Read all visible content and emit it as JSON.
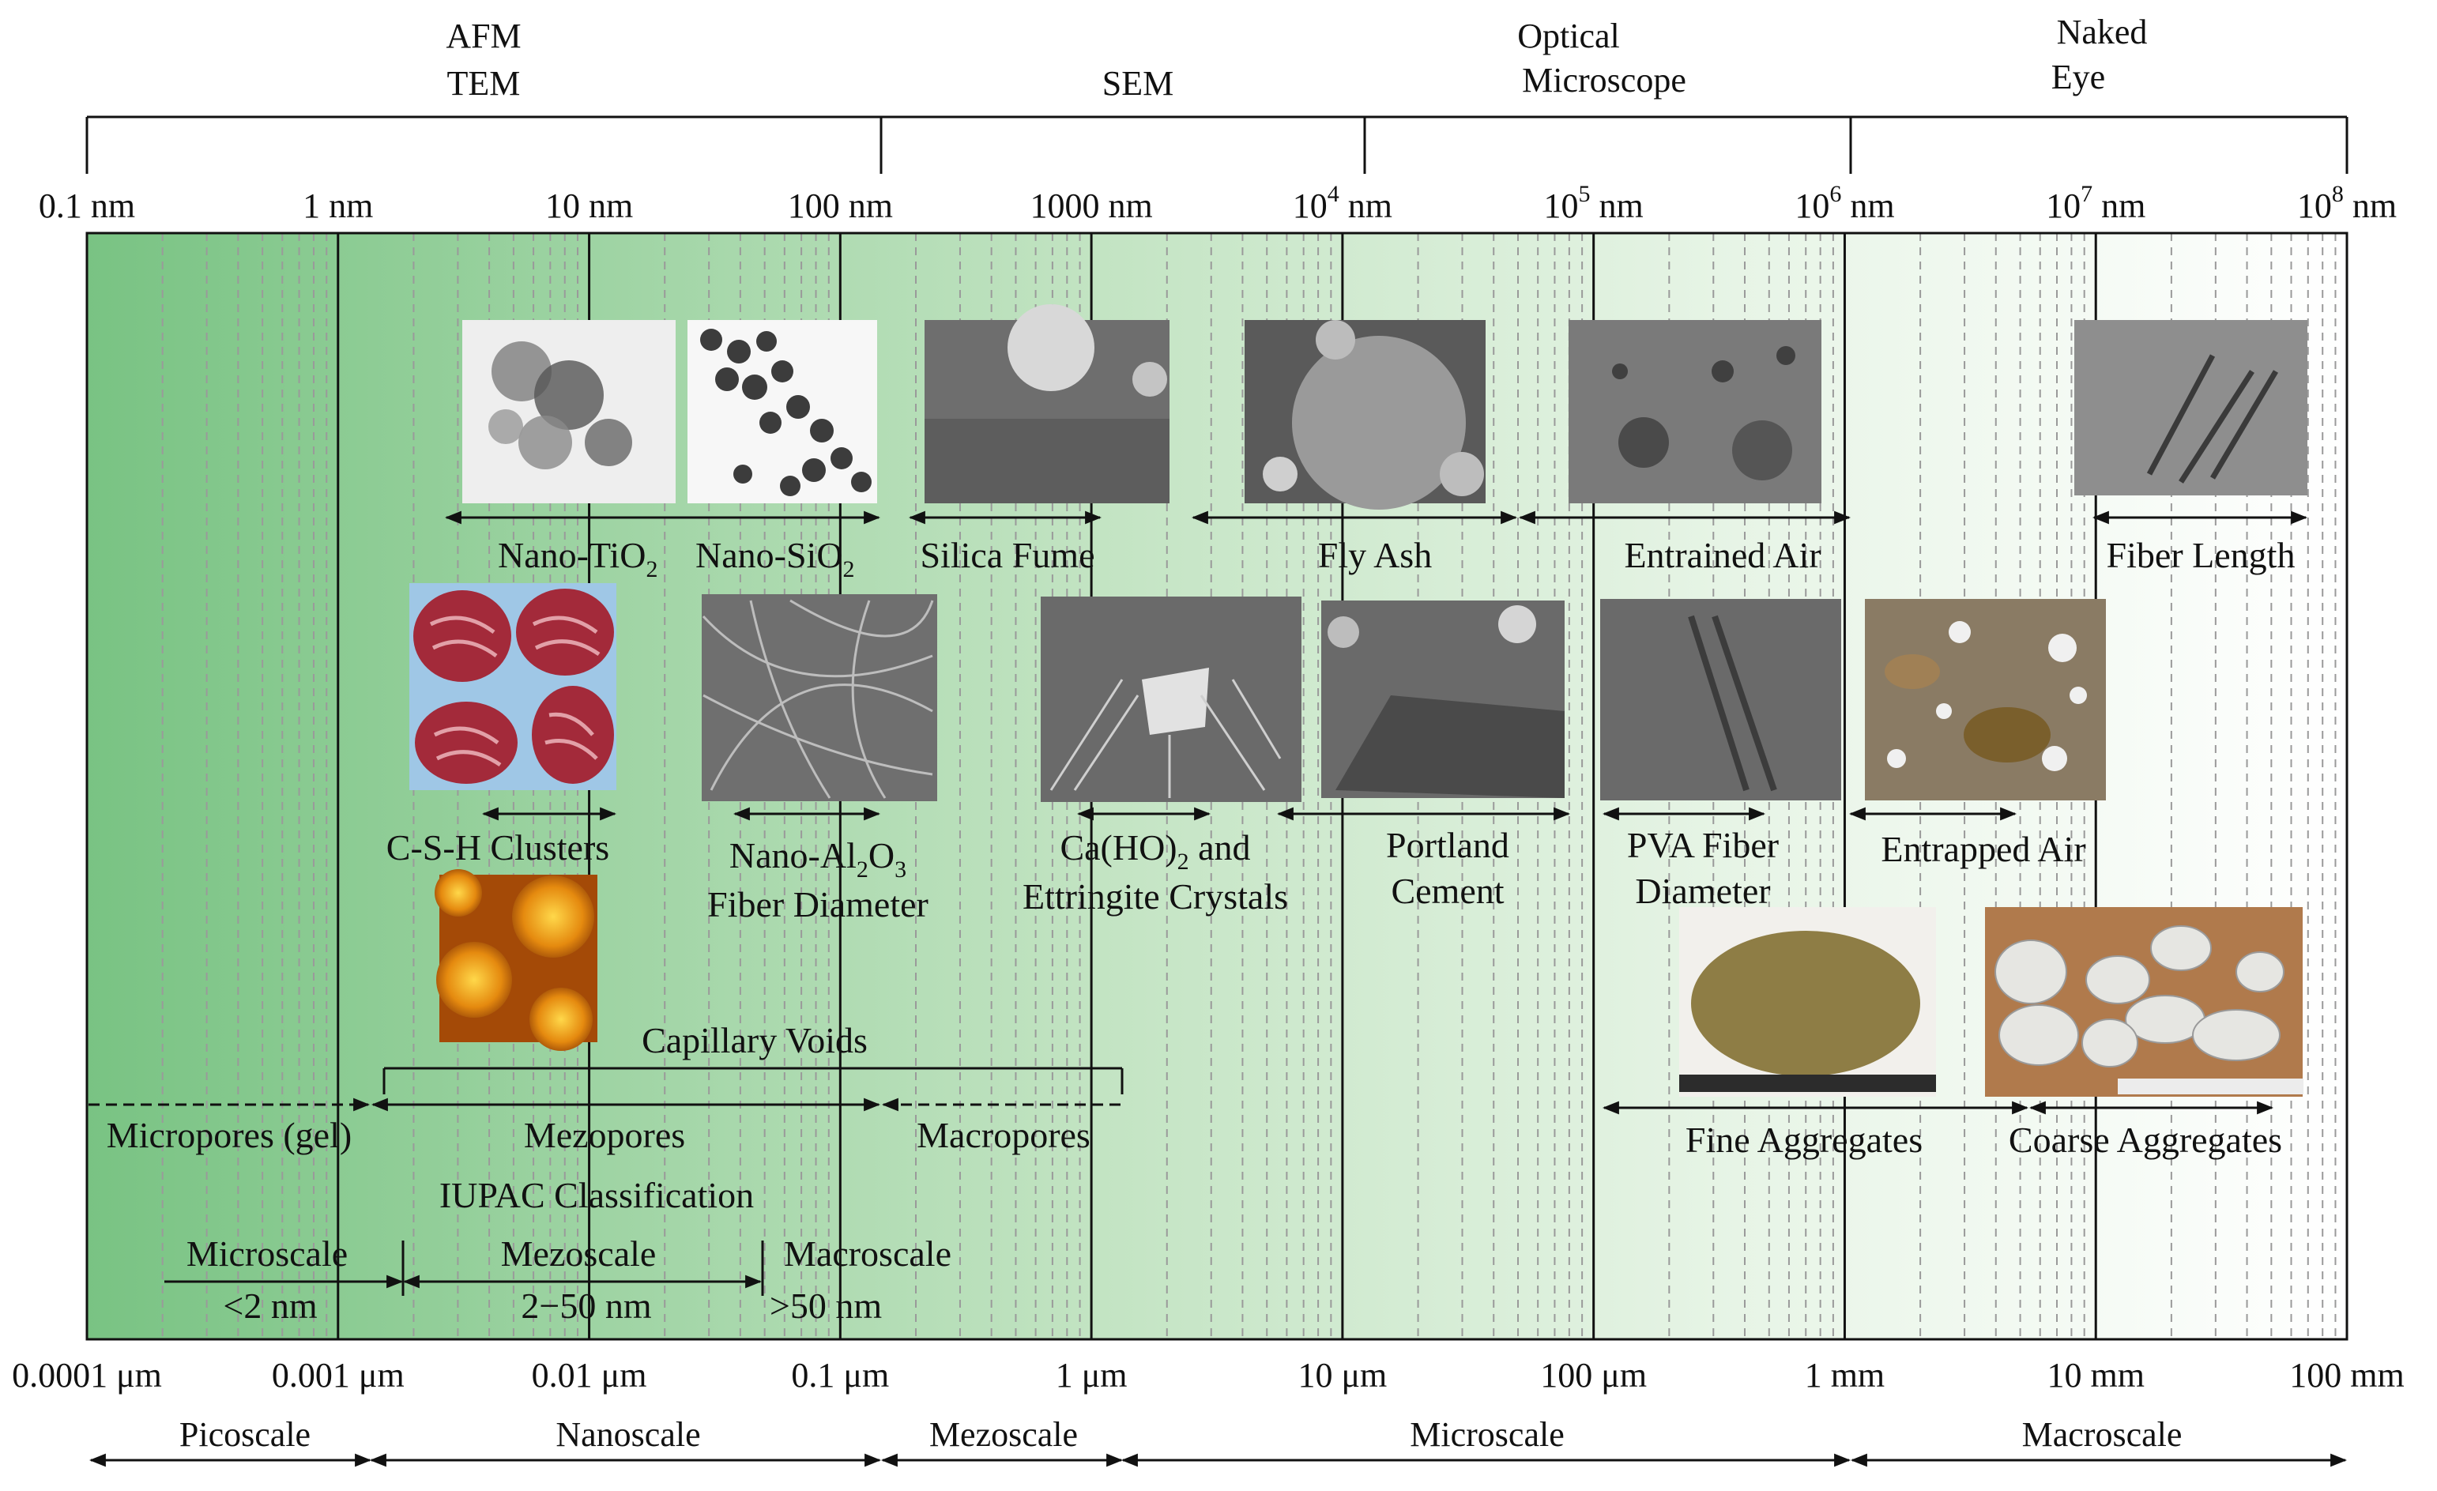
{
  "instruments": {
    "afm_tem": [
      "AFM",
      "TEM"
    ],
    "sem": "SEM",
    "optical": [
      "Optical",
      "Microscope"
    ],
    "naked_eye": [
      "Naked",
      "Eye"
    ]
  },
  "top_axis": {
    "ticks": [
      {
        "base": "0.1 nm",
        "sup": "",
        "unit": ""
      },
      {
        "base": "1 nm",
        "sup": "",
        "unit": ""
      },
      {
        "base": "10 nm",
        "sup": "",
        "unit": ""
      },
      {
        "base": "100 nm",
        "sup": "",
        "unit": ""
      },
      {
        "base": "1000 nm",
        "sup": "",
        "unit": ""
      },
      {
        "base": "10",
        "sup": "4",
        "unit": " nm"
      },
      {
        "base": "10",
        "sup": "5",
        "unit": " nm"
      },
      {
        "base": "10",
        "sup": "6",
        "unit": " nm"
      },
      {
        "base": "10",
        "sup": "7",
        "unit": " nm"
      },
      {
        "base": "10",
        "sup": "8",
        "unit": " nm"
      }
    ]
  },
  "bottom_axis": {
    "ticks": [
      "0.0001 μm",
      "0.001 μm",
      "0.01 μm",
      "0.1 μm",
      "1 μm",
      "10 μm",
      "100 μm",
      "1 mm",
      "10 mm",
      "100 mm"
    ]
  },
  "scales": [
    "Picoscale",
    "Nanoscale",
    "Mezoscale",
    "Microscale",
    "Macroscale"
  ],
  "materials": {
    "nano_tio2": {
      "base": "Nano-TiO",
      "sub": "2"
    },
    "nano_sio2": {
      "base": "Nano-SiO",
      "sub": "2"
    },
    "silica_fume": "Silica Fume",
    "fly_ash": "Fly Ash",
    "entrained_air": "Entrained Air",
    "fiber_length": "Fiber Length",
    "csh_clusters": "C-S-H Clusters",
    "nano_al2o3": {
      "part1": "Nano-Al",
      "sub1": "2",
      "part2": "O",
      "sub2": "3",
      "line2": "Fiber Diameter"
    },
    "ca_oh": {
      "part1": "Ca(HO)",
      "sub1": "2",
      "part2": " and",
      "line2": "Ettringite Crystals"
    },
    "portland": [
      "Portland",
      "Cement"
    ],
    "pva": [
      "PVA Fiber",
      "Diameter"
    ],
    "entrapped_air": "Entrapped Air",
    "fine_aggregates": "Fine Aggregates",
    "coarse_aggregates": "Coarse Aggregates"
  },
  "pores": {
    "capillary": "Capillary Voids",
    "micropores": "Micropores (gel)",
    "mezopores": "Mezopores",
    "macropores": "Macropores",
    "iupac": "IUPAC Classification"
  },
  "iupac_scales": {
    "micro": {
      "label": "Microscale",
      "range": "<2 nm"
    },
    "mezo": {
      "label": "Mezoscale",
      "range": "2−50 nm"
    },
    "macro": {
      "label": "Macroscale",
      "range": ">50 nm"
    }
  },
  "colors": {
    "green_strong": "#79c383",
    "green_mid": "#c8e6c7",
    "green_pale": "#ffffff",
    "axis": "#111111"
  }
}
